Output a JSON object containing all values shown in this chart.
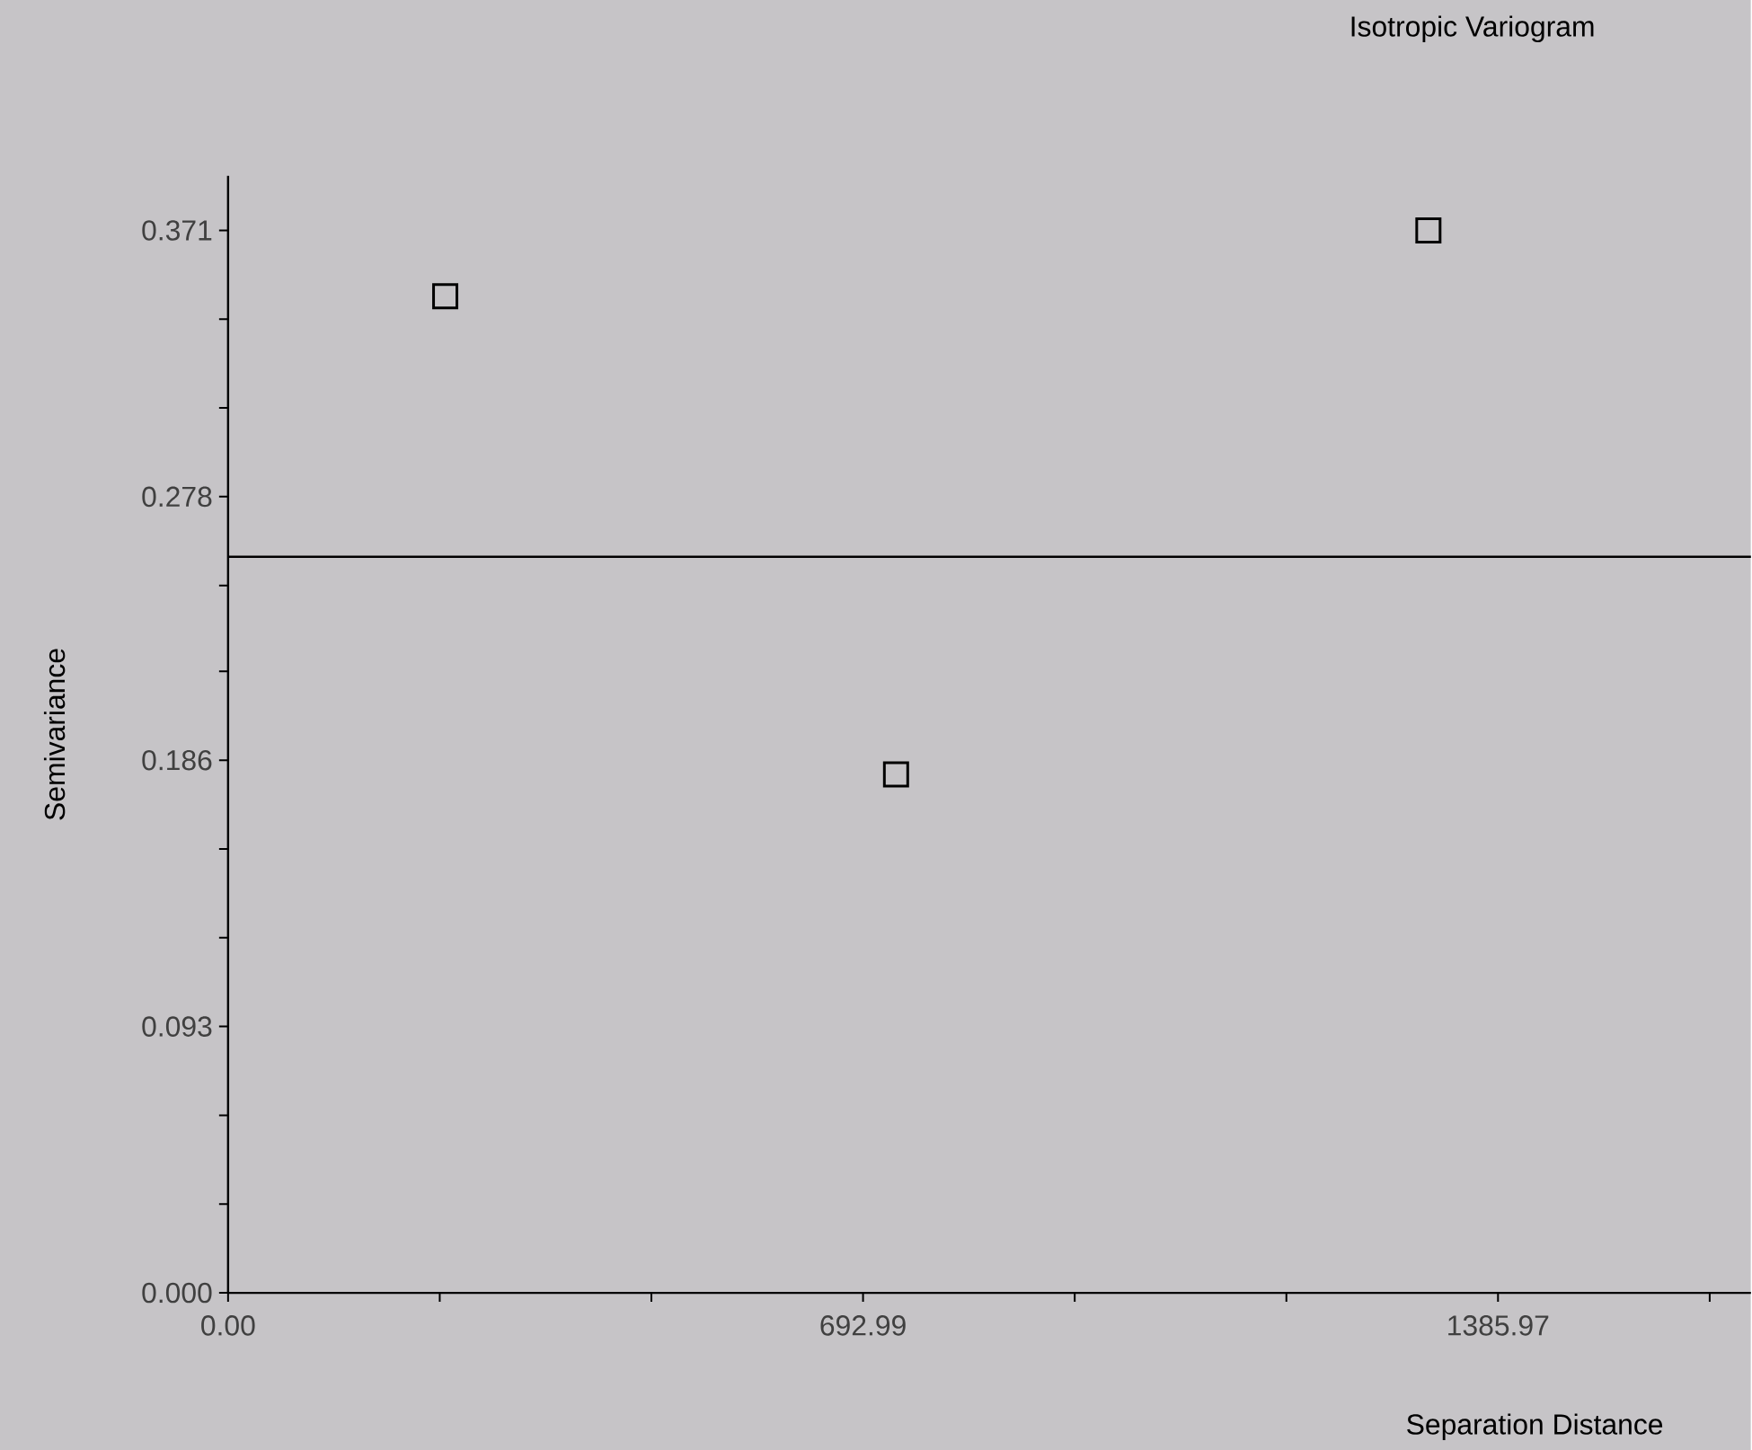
{
  "chart_data": {
    "type": "scatter",
    "title": "Isotropic Variogram",
    "xlabel": "Separation Distance",
    "ylabel": "Semivariance",
    "x": [
      237,
      729,
      1310
    ],
    "series": [
      {
        "color": "#000000",
        "values": [
          0.348,
          0.181,
          0.371
        ]
      }
    ],
    "marker": "square",
    "xlim": [
      0,
      1662
    ],
    "ylim": [
      0,
      0.39
    ],
    "xticks": [
      {
        "value": 0,
        "label": "0.00"
      },
      {
        "value": 231,
        "label": null
      },
      {
        "value": 462,
        "label": null
      },
      692.99,
      {
        "value": 924,
        "label": null
      },
      {
        "value": 1155,
        "label": null
      },
      1385.97,
      {
        "value": 1617,
        "label": null
      }
    ],
    "yticks": [
      {
        "value": 0,
        "label": "0.000"
      },
      {
        "value": 0.031,
        "label": null
      },
      {
        "value": 0.062,
        "label": null
      },
      0.093,
      {
        "value": 0.124,
        "label": null
      },
      {
        "value": 0.155,
        "label": null
      },
      0.186,
      {
        "value": 0.217,
        "label": null
      },
      {
        "value": 0.247,
        "label": null
      },
      0.278,
      {
        "value": 0.309,
        "label": null
      },
      {
        "value": 0.34,
        "label": null
      },
      0.371
    ],
    "ref_lines": [
      {
        "axis": "y",
        "value": 0.257,
        "color": "#000000"
      }
    ]
  }
}
